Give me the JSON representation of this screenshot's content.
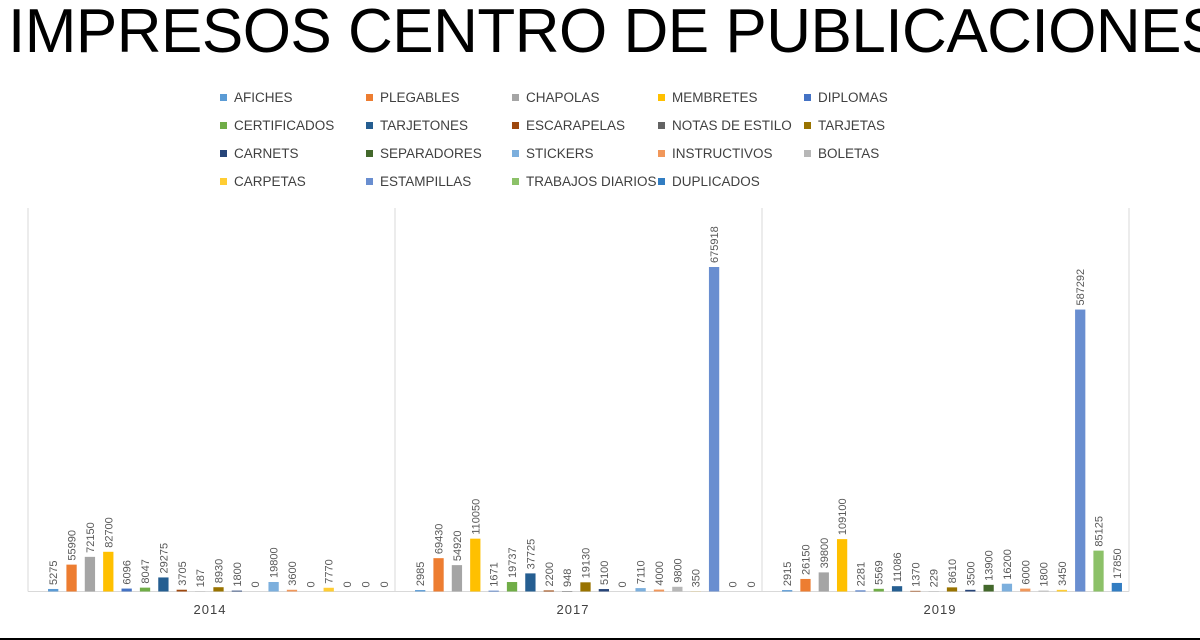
{
  "page_title": "IMPRESOS CENTRO DE PUBLICACIONES",
  "colors": {
    "AFICHES": "#5b9bd5",
    "PLEGABLES": "#ed7d31",
    "CHAPOLAS": "#a5a5a5",
    "MEMBRETES": "#ffc000",
    "DIPLOMAS": "#4472c4",
    "CERTIFICADOS": "#70ad47",
    "TARJETONES": "#255e91",
    "ESCARAPELAS": "#9e480e",
    "NOTAS DE ESTILO": "#636363",
    "TARJETAS": "#997300",
    "CARNETS": "#264478",
    "SEPARADORES": "#43682b",
    "STICKERS": "#7cafdd",
    "INSTRUCTIVOS": "#f1975a",
    "BOLETAS": "#b7b7b7",
    "CARPETAS": "#ffcd33",
    "ESTAMPILLAS": "#698ed0",
    "TRABAJOS DIARIOS": "#8cc168",
    "DUPLICADOS": "#327dc2"
  },
  "chart_data": {
    "type": "bar",
    "title": "IMPRESOS CENTRO DE PUBLICACIONES",
    "categories": [
      "2014",
      "2017",
      "2019"
    ],
    "legend_position": "top",
    "grid": false,
    "series": [
      {
        "name": "AFICHES",
        "values": [
          5275,
          2985,
          2915
        ]
      },
      {
        "name": "PLEGABLES",
        "values": [
          55990,
          69430,
          26150
        ]
      },
      {
        "name": "CHAPOLAS",
        "values": [
          72150,
          54920,
          39800
        ]
      },
      {
        "name": "MEMBRETES",
        "values": [
          82700,
          110050,
          109100
        ]
      },
      {
        "name": "DIPLOMAS",
        "values": [
          6096,
          1671,
          2281
        ]
      },
      {
        "name": "CERTIFICADOS",
        "values": [
          8047,
          19737,
          5569
        ]
      },
      {
        "name": "TARJETONES",
        "values": [
          29275,
          37725,
          11086
        ]
      },
      {
        "name": "ESCARAPELAS",
        "values": [
          3705,
          2200,
          1370
        ]
      },
      {
        "name": "NOTAS DE ESTILO",
        "values": [
          187,
          948,
          229
        ]
      },
      {
        "name": "TARJETAS",
        "values": [
          8930,
          19130,
          8610
        ]
      },
      {
        "name": "CARNETS",
        "values": [
          1800,
          5100,
          3500
        ]
      },
      {
        "name": "SEPARADORES",
        "values": [
          0,
          0,
          13900
        ]
      },
      {
        "name": "STICKERS",
        "values": [
          19800,
          7110,
          16200
        ]
      },
      {
        "name": "INSTRUCTIVOS",
        "values": [
          3600,
          4000,
          6000
        ]
      },
      {
        "name": "BOLETAS",
        "values": [
          0,
          9800,
          1800
        ]
      },
      {
        "name": "CARPETAS",
        "values": [
          7770,
          350,
          3450
        ]
      },
      {
        "name": "ESTAMPILLAS",
        "values": [
          0,
          675918,
          587292
        ]
      },
      {
        "name": "TRABAJOS DIARIOS",
        "values": [
          0,
          0,
          85125
        ]
      },
      {
        "name": "DUPLICADOS",
        "values": [
          0,
          0,
          17850
        ]
      }
    ]
  }
}
